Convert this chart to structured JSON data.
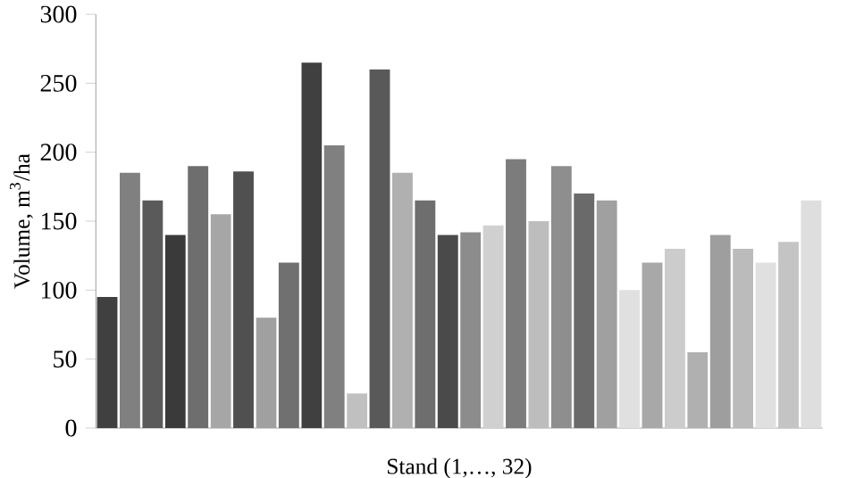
{
  "chart_data": {
    "type": "bar",
    "xlabel": "Stand (1,…, 32)",
    "ylabel": "Volume, m$^{3}$/ha",
    "categories": [
      null,
      null,
      null,
      null,
      null,
      null,
      null,
      null,
      null,
      null,
      null,
      null,
      null,
      null,
      null,
      null,
      null,
      null,
      null,
      null,
      null,
      null,
      null,
      null,
      null,
      null,
      null,
      null,
      null,
      null,
      null,
      null
    ],
    "values": [
      95,
      185,
      165,
      140,
      190,
      155,
      186,
      80,
      120,
      265,
      205,
      25,
      260,
      185,
      165,
      140,
      142,
      147,
      195,
      150,
      190,
      170,
      165,
      100,
      120,
      130,
      55,
      140,
      130,
      120,
      135,
      165
    ],
    "colors": [
      "#404040",
      "#808080",
      "#5a5a5a",
      "#3a3a3a",
      "#6e6e6e",
      "#a6a6a6",
      "#505050",
      "#a0a0a0",
      "#707070",
      "#404040",
      "#808080",
      "#c0c0c0",
      "#595959",
      "#b0b0b0",
      "#6e6e6e",
      "#4a4a4a",
      "#8c8c8c",
      "#d0d0d0",
      "#7c7c7c",
      "#bdbdbd",
      "#8e8e8e",
      "#6a6a6a",
      "#a0a0a0",
      "#e0e0e0",
      "#a8a8a8",
      "#cccccc",
      "#b0b0b0",
      "#9e9e9e",
      "#bbbbbb",
      "#e0e0e0",
      "#c4c4c4",
      "#dedede"
    ],
    "ylim": [
      0,
      300
    ],
    "yticks": [
      0,
      50,
      100,
      150,
      200,
      250,
      300
    ],
    "grid": false
  }
}
